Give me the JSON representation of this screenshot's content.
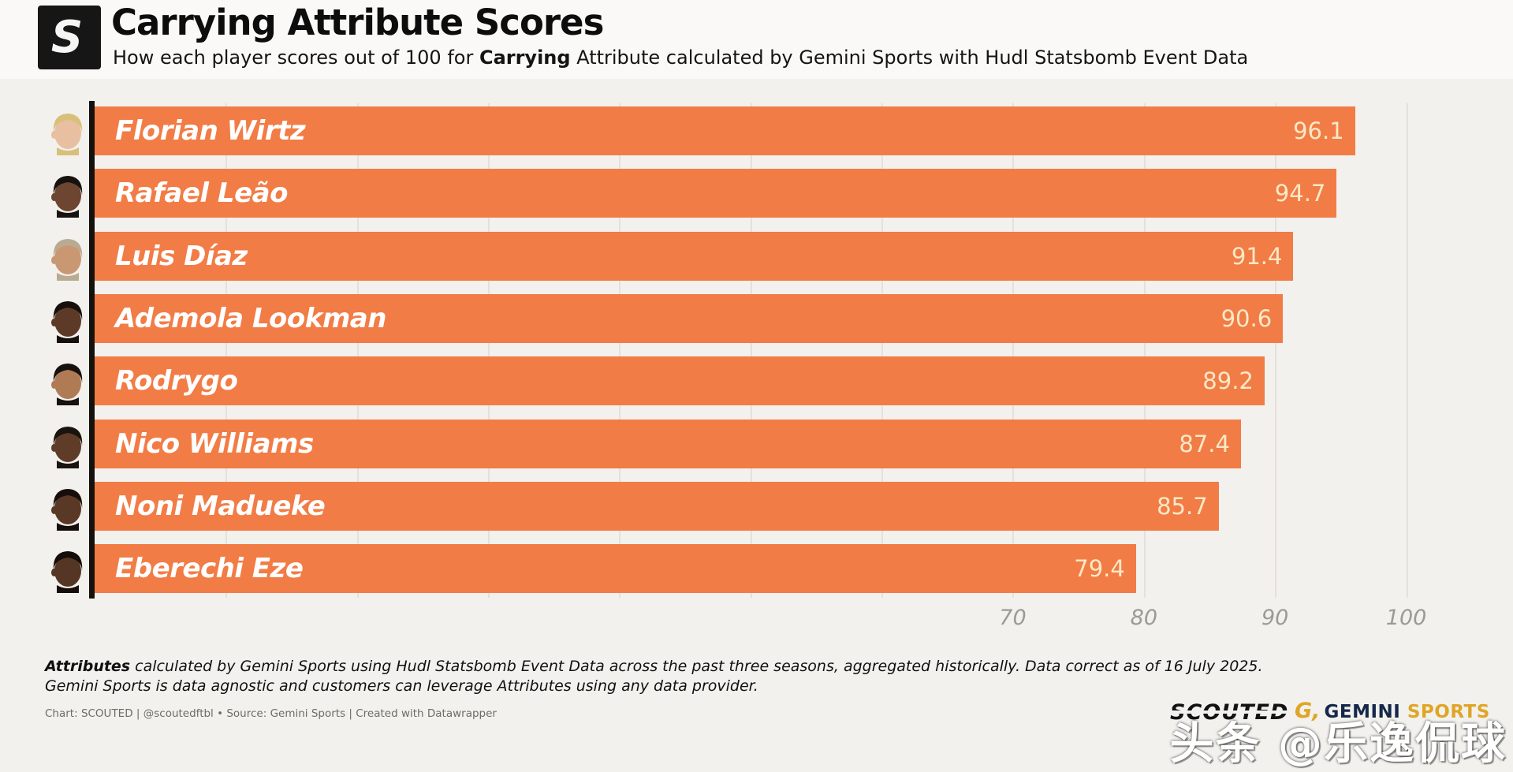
{
  "header": {
    "logo_letter": "S",
    "title": "Carrying Attribute Scores",
    "subtitle_prefix": "How each player scores out of 100 for ",
    "subtitle_bold": "Carrying",
    "subtitle_suffix": " Attribute calculated by Gemini Sports with Hudl Statsbomb Event Data"
  },
  "chart_data": {
    "type": "bar",
    "orientation": "horizontal",
    "title": "Carrying Attribute Scores",
    "categories": [
      "Florian Wirtz",
      "Rafael Leão",
      "Luis Díaz",
      "Ademola Lookman",
      "Rodrygo",
      "Nico Williams",
      "Noni Madueke",
      "Eberechi Eze"
    ],
    "values": [
      96.1,
      94.7,
      91.4,
      90.6,
      89.2,
      87.4,
      85.7,
      79.4
    ],
    "xlim": [
      0,
      107
    ],
    "gridline_step": 10,
    "x_tick_labels": [
      70,
      80,
      90,
      100
    ],
    "grid": true,
    "legend": "none",
    "bar_color": "#f27c46",
    "value_label_color": "#fbe9c6",
    "name_label_color": "#ffffff",
    "axis_line_color": "#15110d",
    "avatars": [
      {
        "skin": "#e8bfa0",
        "hair": "#d9c07a"
      },
      {
        "skin": "#6d4530",
        "hair": "#17120f"
      },
      {
        "skin": "#c99772",
        "hair": "#b9ab92"
      },
      {
        "skin": "#5d3a28",
        "hair": "#160f0c"
      },
      {
        "skin": "#b07b54",
        "hair": "#171210"
      },
      {
        "skin": "#5f3c28",
        "hair": "#1a130e"
      },
      {
        "skin": "#5a3826",
        "hair": "#150e0a"
      },
      {
        "skin": "#553524",
        "hair": "#140d09"
      }
    ]
  },
  "footer": {
    "note1_bold": "Attributes",
    "note1_rest": " calculated by Gemini Sports using Hudl Statsbomb Event Data across the past three seasons, aggregated historically. Data correct as of 16 July 2025.",
    "note2": "Gemini Sports is data agnostic and customers can leverage Attributes using any data provider.",
    "credit": "Chart: SCOUTED | @scoutedftbl • Source: Gemini Sports | Created with Datawrapper",
    "scouted_logo": "SCOUTED",
    "gemini_g": "G,",
    "gemini_word1": "GEMINI",
    "gemini_word2": " SPORTS",
    "watermark": "头条 @乐逸侃球"
  }
}
